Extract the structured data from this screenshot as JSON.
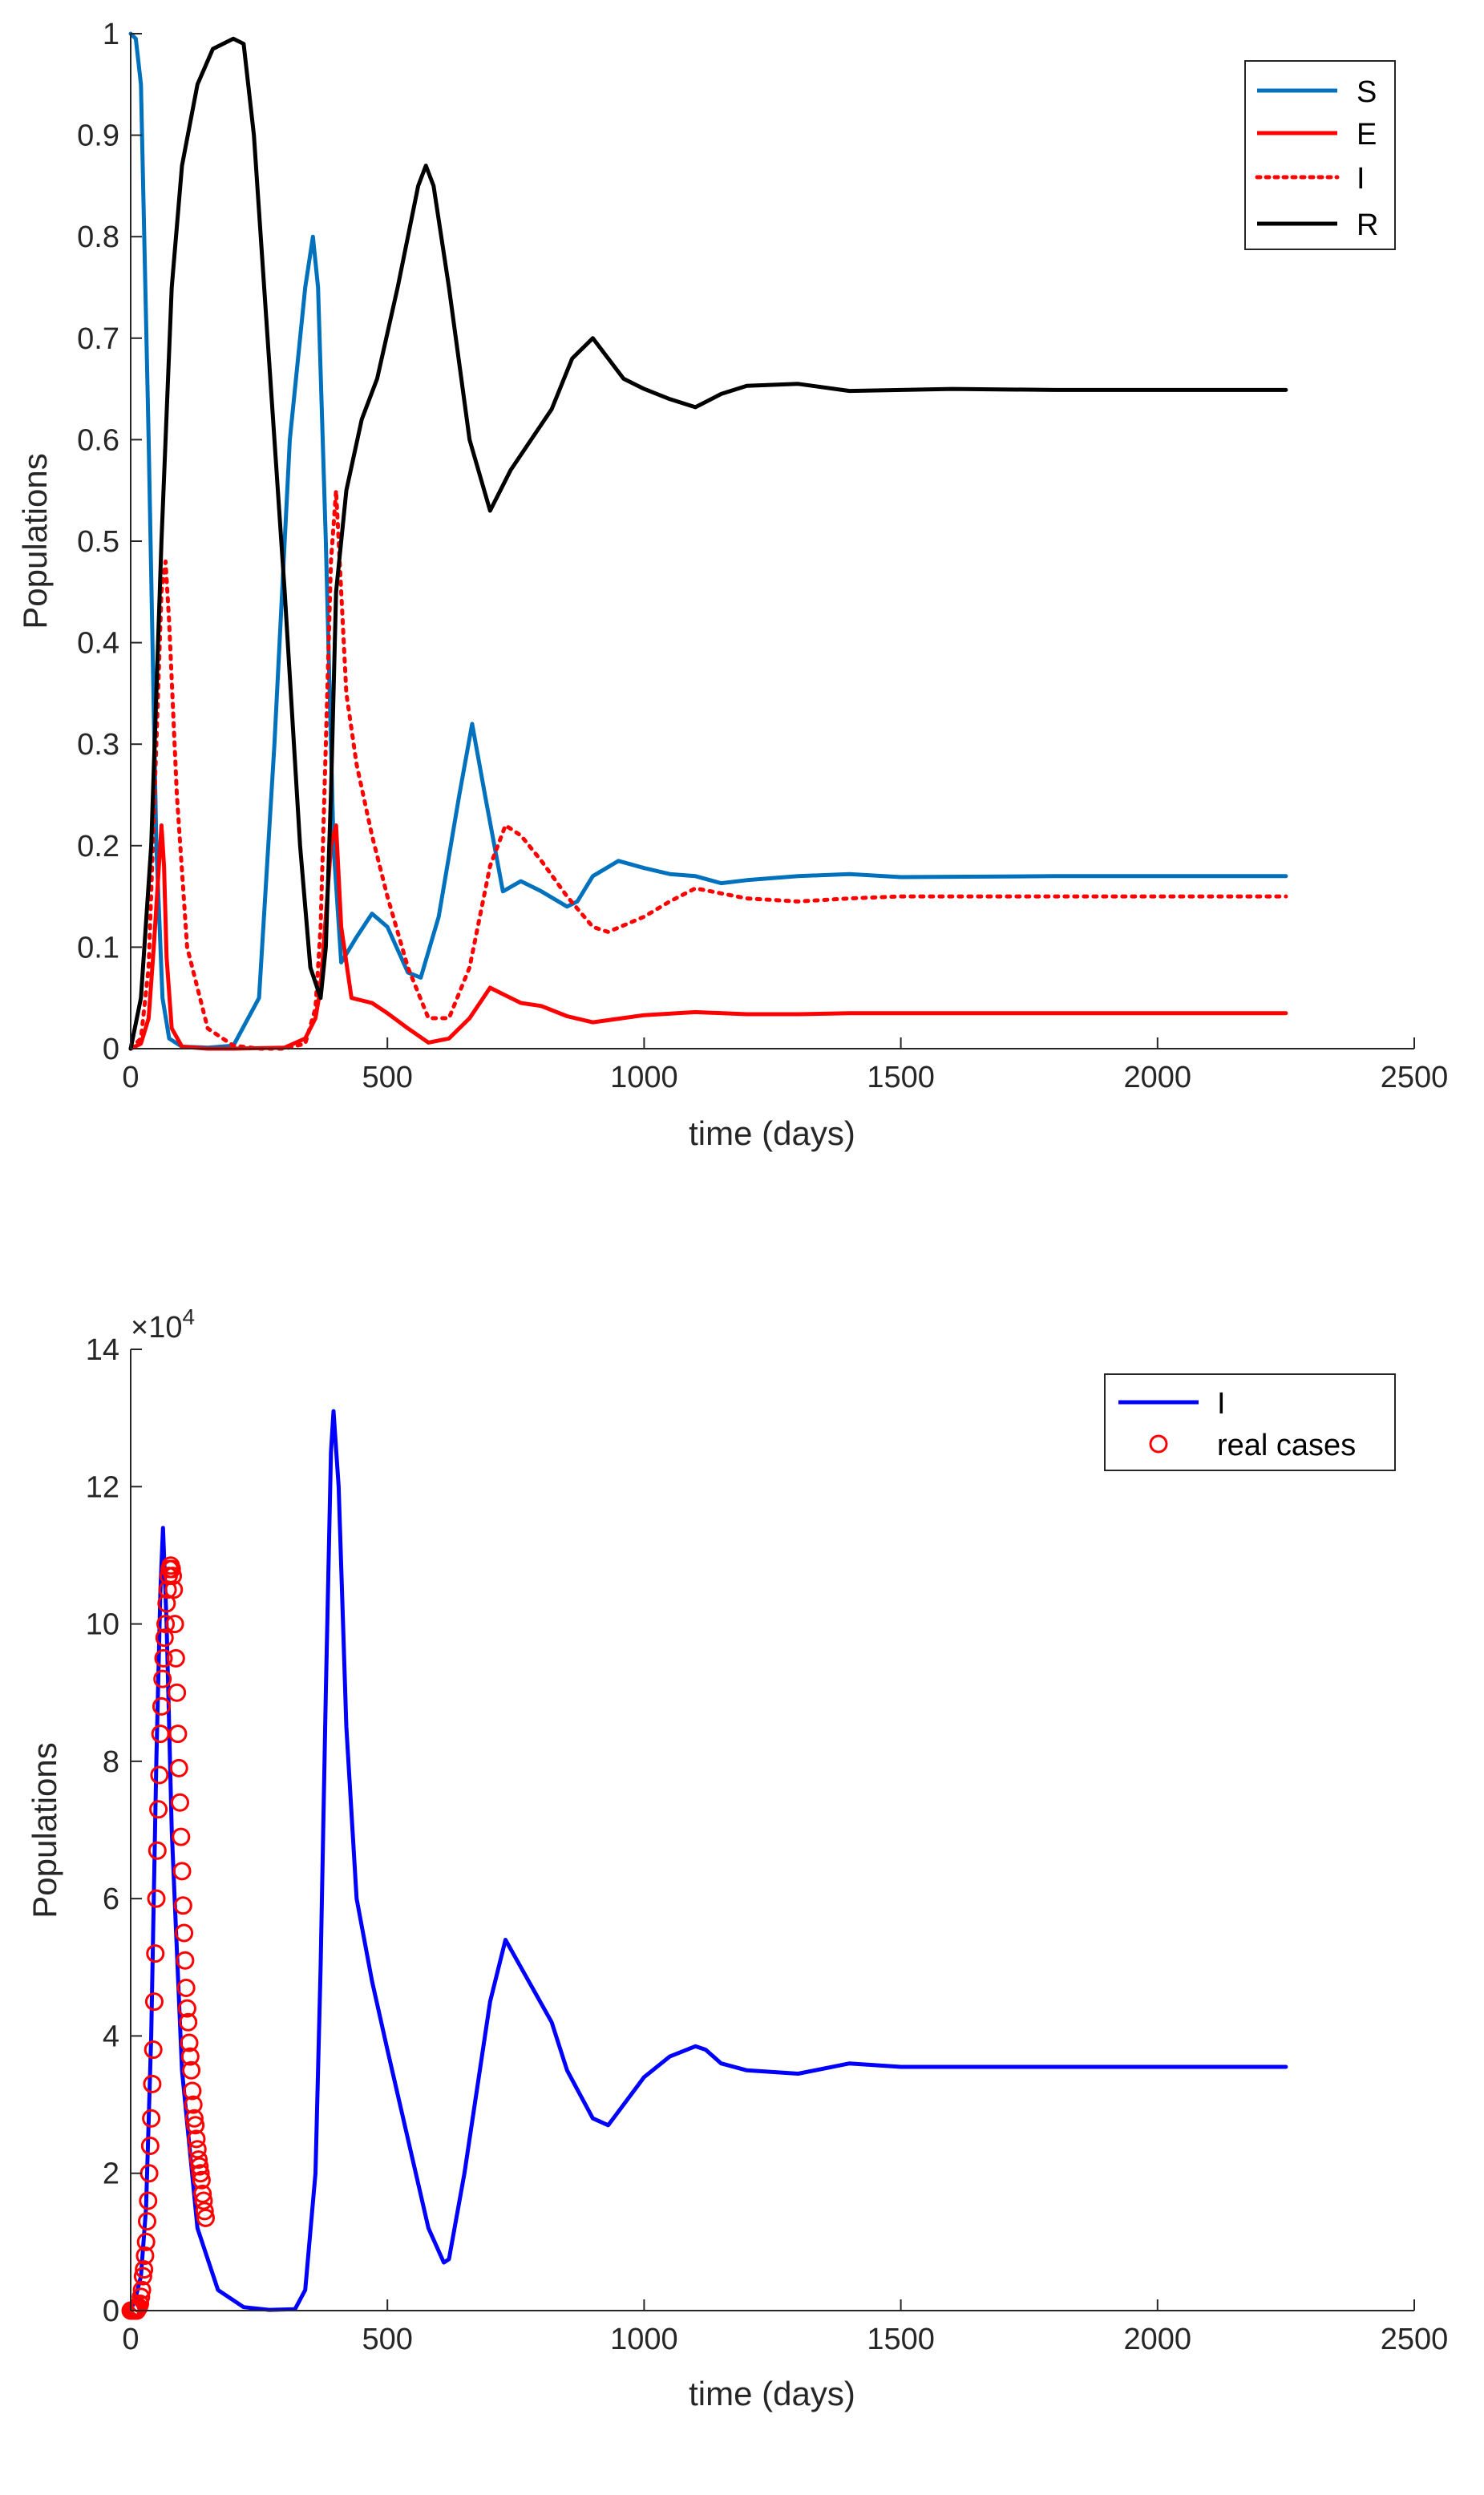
{
  "chart_data": [
    {
      "type": "line",
      "title": "",
      "xlabel": "time (days)",
      "ylabel": "Populations",
      "xlim": [
        0,
        2500
      ],
      "ylim": [
        0,
        1
      ],
      "xticks": [
        0,
        500,
        1000,
        1500,
        2000,
        2500
      ],
      "yticks": [
        0,
        0.1,
        0.2,
        0.3,
        0.4,
        0.5,
        0.6,
        0.7,
        0.8,
        0.9,
        1
      ],
      "ytick_labels": [
        "0",
        "0.1",
        "0.2",
        "0.3",
        "0.4",
        "0.5",
        "0.6",
        "0.7",
        "0.8",
        "0.9",
        "1"
      ],
      "xtick_labels": [
        "0",
        "500",
        "1000",
        "1500",
        "2000",
        "2500"
      ],
      "legend_position": "top-right",
      "series": [
        {
          "name": "S",
          "color": "#0072BD",
          "style": "solid",
          "x": [
            0,
            10,
            20,
            35,
            50,
            62,
            75,
            100,
            150,
            200,
            250,
            280,
            310,
            340,
            355,
            365,
            380,
            395,
            410,
            440,
            470,
            500,
            540,
            565,
            600,
            640,
            665,
            690,
            725,
            760,
            800,
            850,
            870,
            900,
            950,
            1000,
            1050,
            1100,
            1150,
            1200,
            1300,
            1400,
            1500,
            1800,
            2250
          ],
          "y": [
            1,
            0.995,
            0.95,
            0.6,
            0.2,
            0.05,
            0.01,
            0.002,
            0.001,
            0.003,
            0.05,
            0.3,
            0.6,
            0.75,
            0.8,
            0.75,
            0.5,
            0.2,
            0.085,
            0.11,
            0.133,
            0.12,
            0.075,
            0.07,
            0.13,
            0.25,
            0.32,
            0.25,
            0.155,
            0.165,
            0.155,
            0.14,
            0.145,
            0.17,
            0.185,
            0.178,
            0.172,
            0.17,
            0.163,
            0.166,
            0.17,
            0.172,
            0.169,
            0.17,
            0.17
          ]
        },
        {
          "name": "E",
          "color": "#FF0000",
          "style": "solid",
          "x": [
            0,
            20,
            35,
            45,
            55,
            60,
            65,
            70,
            80,
            100,
            150,
            200,
            300,
            340,
            360,
            370,
            380,
            390,
            400,
            410,
            430,
            470,
            500,
            540,
            580,
            620,
            660,
            700,
            720,
            760,
            800,
            850,
            900,
            1000,
            1100,
            1200,
            1300,
            1400,
            2250
          ],
          "y": [
            0,
            0.005,
            0.03,
            0.1,
            0.18,
            0.22,
            0.18,
            0.09,
            0.02,
            0.002,
            0,
            0,
            0.001,
            0.01,
            0.03,
            0.06,
            0.13,
            0.2,
            0.22,
            0.12,
            0.05,
            0.045,
            0.035,
            0.02,
            0.006,
            0.01,
            0.03,
            0.06,
            0.055,
            0.045,
            0.042,
            0.032,
            0.026,
            0.033,
            0.036,
            0.034,
            0.034,
            0.035,
            0.035
          ]
        },
        {
          "name": "I",
          "color": "#FF0000",
          "style": "dotted",
          "x": [
            0,
            20,
            35,
            50,
            60,
            68,
            75,
            90,
            110,
            150,
            200,
            250,
            300,
            340,
            360,
            370,
            380,
            390,
            400,
            410,
            420,
            440,
            470,
            500,
            540,
            580,
            620,
            660,
            700,
            730,
            760,
            800,
            850,
            900,
            930,
            1000,
            1050,
            1100,
            1200,
            1300,
            1400,
            1500,
            2250
          ],
          "y": [
            0,
            0.01,
            0.08,
            0.3,
            0.45,
            0.48,
            0.42,
            0.25,
            0.1,
            0.02,
            0.003,
            0,
            0,
            0.005,
            0.04,
            0.12,
            0.3,
            0.48,
            0.55,
            0.45,
            0.35,
            0.28,
            0.21,
            0.15,
            0.08,
            0.03,
            0.03,
            0.08,
            0.18,
            0.22,
            0.21,
            0.185,
            0.15,
            0.12,
            0.115,
            0.13,
            0.145,
            0.158,
            0.148,
            0.145,
            0.148,
            0.15,
            0.15
          ]
        },
        {
          "name": "R",
          "color": "#000000",
          "style": "solid",
          "x": [
            0,
            20,
            40,
            60,
            80,
            100,
            130,
            160,
            200,
            220,
            240,
            260,
            300,
            330,
            350,
            370,
            380,
            390,
            400,
            420,
            450,
            480,
            520,
            560,
            575,
            590,
            620,
            660,
            700,
            740,
            780,
            820,
            860,
            900,
            930,
            960,
            1000,
            1050,
            1100,
            1150,
            1200,
            1300,
            1400,
            1600,
            1800,
            2250
          ],
          "y": [
            0,
            0.05,
            0.2,
            0.5,
            0.75,
            0.87,
            0.95,
            0.985,
            0.995,
            0.99,
            0.9,
            0.75,
            0.45,
            0.2,
            0.08,
            0.05,
            0.1,
            0.25,
            0.45,
            0.55,
            0.62,
            0.66,
            0.75,
            0.85,
            0.87,
            0.85,
            0.75,
            0.6,
            0.53,
            0.57,
            0.6,
            0.63,
            0.68,
            0.7,
            0.68,
            0.66,
            0.65,
            0.64,
            0.632,
            0.645,
            0.653,
            0.655,
            0.648,
            0.65,
            0.649,
            0.649
          ]
        }
      ]
    },
    {
      "type": "line",
      "title": "",
      "xlabel": "time (days)",
      "ylabel": "Populations",
      "y_exponent_label": "×10",
      "y_exponent": "4",
      "xlim": [
        0,
        2500
      ],
      "ylim": [
        0,
        140000
      ],
      "xticks": [
        0,
        500,
        1000,
        1500,
        2000,
        2500
      ],
      "yticks": [
        0,
        20000,
        40000,
        60000,
        80000,
        100000,
        120000,
        140000
      ],
      "ytick_labels": [
        "0",
        "2",
        "4",
        "6",
        "8",
        "10",
        "12",
        "14"
      ],
      "xtick_labels": [
        "0",
        "500",
        "1000",
        "1500",
        "2000",
        "2500"
      ],
      "legend_position": "top-right",
      "series": [
        {
          "name": "I",
          "color": "#0000FF",
          "style": "solid",
          "x": [
            0,
            10,
            20,
            30,
            40,
            50,
            58,
            63,
            70,
            80,
            100,
            130,
            170,
            220,
            270,
            320,
            340,
            360,
            370,
            380,
            390,
            395,
            405,
            420,
            440,
            470,
            500,
            540,
            580,
            610,
            620,
            650,
            700,
            730,
            760,
            790,
            820,
            850,
            900,
            930,
            960,
            1000,
            1050,
            1100,
            1120,
            1150,
            1200,
            1300,
            1400,
            1500,
            1600,
            1800,
            2250
          ],
          "y": [
            0,
            2000,
            5000,
            15000,
            40000,
            80000,
            105000,
            114000,
            100000,
            70000,
            35000,
            12000,
            3000,
            500,
            100,
            200,
            3000,
            20000,
            50000,
            90000,
            125000,
            131000,
            120000,
            85000,
            60000,
            48000,
            38000,
            25000,
            12000,
            7000,
            7500,
            20000,
            45000,
            54000,
            50000,
            46000,
            42000,
            35000,
            28000,
            27000,
            30000,
            34000,
            37000,
            38500,
            38000,
            36000,
            35000,
            34500,
            36000,
            35500,
            35500,
            35500,
            35500
          ]
        },
        {
          "name": "real cases",
          "color": "#FF0000",
          "style": "markers",
          "x": [
            0,
            2,
            4,
            6,
            8,
            10,
            12,
            14,
            16,
            18,
            20,
            22,
            24,
            26,
            28,
            30,
            32,
            34,
            36,
            38,
            40,
            42,
            44,
            46,
            48,
            50,
            52,
            54,
            56,
            58,
            60,
            62,
            64,
            66,
            68,
            70,
            72,
            74,
            76,
            78,
            80,
            82,
            84,
            86,
            88,
            90,
            92,
            94,
            96,
            98,
            100,
            102,
            104,
            106,
            108,
            110,
            112,
            114,
            116,
            118,
            120,
            122,
            124,
            126,
            128,
            130,
            132,
            134,
            136,
            138,
            140,
            142,
            144,
            146
          ],
          "y": [
            0,
            0,
            0,
            0,
            0,
            0,
            0,
            300,
            500,
            1000,
            2000,
            3000,
            5000,
            6000,
            8000,
            10000,
            13000,
            16000,
            20000,
            24000,
            28000,
            33000,
            38000,
            45000,
            52000,
            60000,
            67000,
            73000,
            78000,
            84000,
            88000,
            92000,
            95000,
            98000,
            100000,
            103000,
            105000,
            107000,
            108000,
            108500,
            108000,
            107000,
            105000,
            100000,
            95000,
            90000,
            84000,
            79000,
            74000,
            69000,
            64000,
            59000,
            55000,
            51000,
            47000,
            44000,
            42000,
            39000,
            37000,
            35000,
            32000,
            30000,
            28000,
            27000,
            25000,
            23500,
            22000,
            21000,
            20000,
            19000,
            17000,
            16000,
            14500,
            13500
          ]
        }
      ]
    }
  ]
}
